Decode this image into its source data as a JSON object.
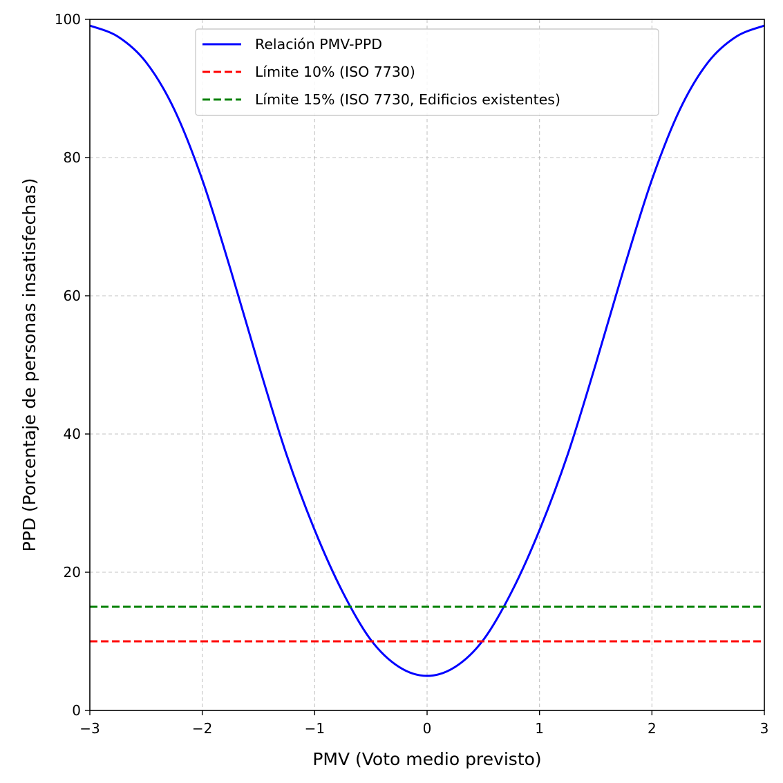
{
  "chart_data": {
    "type": "line",
    "title": "",
    "xlabel": "PMV (Voto medio previsto)",
    "ylabel": "PPD (Porcentaje de personas insatisfechas)",
    "xlim": [
      -3,
      3
    ],
    "ylim": [
      0,
      100
    ],
    "xticks": [
      -3,
      -2,
      -1,
      0,
      1,
      2,
      3
    ],
    "xtick_labels": [
      "−3",
      "−2",
      "−1",
      "0",
      "1",
      "2",
      "3"
    ],
    "yticks": [
      0,
      20,
      40,
      60,
      80,
      100
    ],
    "ytick_labels": [
      "0",
      "20",
      "40",
      "60",
      "80",
      "100"
    ],
    "grid": true,
    "legend_position": "top-center",
    "series": [
      {
        "name": "Relación PMV-PPD",
        "color": "#0000ff",
        "style": "solid",
        "x": [
          -3,
          -2.75,
          -2.5,
          -2.25,
          -2,
          -1.75,
          -1.5,
          -1.25,
          -1,
          -0.75,
          -0.5,
          -0.25,
          0,
          0.25,
          0.5,
          0.75,
          1,
          1.25,
          1.5,
          1.75,
          2,
          2.25,
          2.5,
          2.75,
          3
        ],
        "y": [
          99.1,
          97.5,
          93.8,
          87.0,
          76.8,
          63.9,
          50.1,
          37.0,
          26.1,
          17.1,
          10.2,
          6.3,
          5.0,
          6.3,
          10.2,
          17.1,
          26.1,
          37.0,
          50.1,
          63.9,
          76.8,
          87.0,
          93.8,
          97.5,
          99.1
        ]
      },
      {
        "name": "Límite 10% (ISO 7730)",
        "color": "#ff0000",
        "style": "dashed",
        "x": [
          -3,
          3
        ],
        "y": [
          10,
          10
        ]
      },
      {
        "name": "Límite 15% (ISO 7730, Edificios existentes)",
        "color": "#008000",
        "style": "dashed",
        "x": [
          -3,
          3
        ],
        "y": [
          15,
          15
        ]
      }
    ]
  }
}
